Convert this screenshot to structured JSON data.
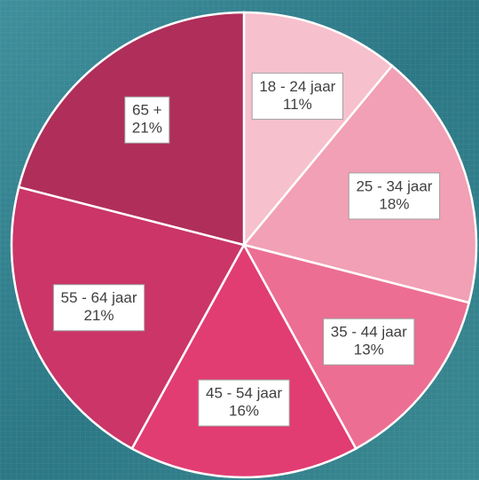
{
  "chart_data": {
    "type": "pie",
    "categories": [
      "18 - 24 jaar",
      "25 - 34 jaar",
      "35 - 44 jaar",
      "45 - 54 jaar",
      "55 - 64 jaar",
      "65 +"
    ],
    "values": [
      11,
      18,
      13,
      16,
      21,
      21
    ],
    "value_labels": [
      "11%",
      "18%",
      "13%",
      "16%",
      "21%",
      "21%"
    ],
    "colors": [
      "#f7c0cd",
      "#f1a0b5",
      "#ec6e93",
      "#e13d73",
      "#cb3567",
      "#b02e5a"
    ]
  }
}
